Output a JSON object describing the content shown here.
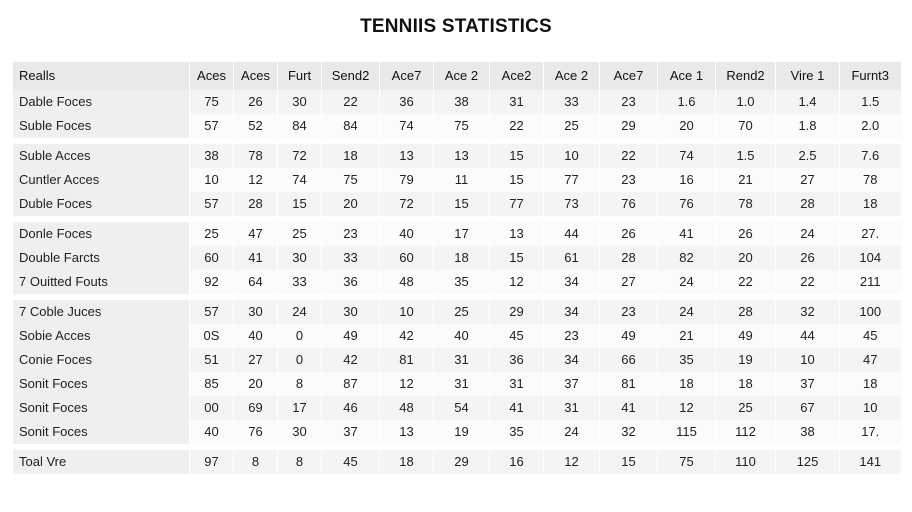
{
  "title": "TENNIIS STATISTICS",
  "columns": [
    "Realls",
    "Aces",
    "Aces",
    "Furt",
    "Send2",
    "Ace7",
    "Ace 2",
    "Ace2",
    "Ace 2",
    "Ace7",
    "Ace 1",
    "Rend2",
    "Vire 1",
    "Furnt3"
  ],
  "rows": [
    [
      "Dable Foces",
      "75",
      "26",
      "30",
      "22",
      "36",
      "38",
      "31",
      "33",
      "23",
      "1.6",
      "1.0",
      "1.4",
      "1.5"
    ],
    [
      "Suble Foces",
      "57",
      "52",
      "84",
      "84",
      "74",
      "75",
      "22",
      "25",
      "29",
      "20",
      "70",
      "1.8",
      "2.0"
    ],
    [
      "Suble Acces",
      "38",
      "78",
      "72",
      "18",
      "13",
      "13",
      "15",
      "10",
      "22",
      "74",
      "1.5",
      "2.5",
      "7.6"
    ],
    [
      "Cuntler Acces",
      "10",
      "12",
      "74",
      "75",
      "79",
      "11",
      "15",
      "77",
      "23",
      "16",
      "21",
      "27",
      "78"
    ],
    [
      "Duble Foces",
      "57",
      "28",
      "15",
      "20",
      "72",
      "15",
      "77",
      "73",
      "76",
      "76",
      "78",
      "28",
      "18"
    ],
    [
      "Donle Foces",
      "25",
      "47",
      "25",
      "23",
      "40",
      "17",
      "13",
      "44",
      "26",
      "41",
      "26",
      "24",
      "27."
    ],
    [
      "Double Farcts",
      "60",
      "41",
      "30",
      "33",
      "60",
      "18",
      "15",
      "61",
      "28",
      "82",
      "20",
      "26",
      "104"
    ],
    [
      "7 Ouitted Fouts",
      "92",
      "64",
      "33",
      "36",
      "48",
      "35",
      "12",
      "34",
      "27",
      "24",
      "22",
      "22",
      "211"
    ],
    [
      "7 Coble Juces",
      "57",
      "30",
      "24",
      "30",
      "10",
      "25",
      "29",
      "34",
      "23",
      "24",
      "28",
      "32",
      "100"
    ],
    [
      "Sobie Acces",
      "0S",
      "40",
      "0",
      "49",
      "42",
      "40",
      "45",
      "23",
      "49",
      "21",
      "49",
      "44",
      "45"
    ],
    [
      "Conie Foces",
      "51",
      "27",
      "0",
      "42",
      "81",
      "31",
      "36",
      "34",
      "66",
      "35",
      "19",
      "10",
      "47"
    ],
    [
      "Sonit Foces",
      "85",
      "20",
      "8",
      "87",
      "12",
      "31",
      "31",
      "37",
      "81",
      "18",
      "18",
      "37",
      "18"
    ],
    [
      "Sonit Foces",
      "00",
      "69",
      "17",
      "46",
      "48",
      "54",
      "41",
      "31",
      "41",
      "12",
      "25",
      "67",
      "10"
    ],
    [
      "Sonit Foces",
      "40",
      "76",
      "30",
      "37",
      "13",
      "19",
      "35",
      "24",
      "32",
      "115",
      "112",
      "38",
      "17."
    ],
    [
      "Toal Vre",
      "97",
      "8",
      "8",
      "45",
      "18",
      "29",
      "16",
      "12",
      "15",
      "75",
      "110",
      "125",
      "141"
    ]
  ]
}
